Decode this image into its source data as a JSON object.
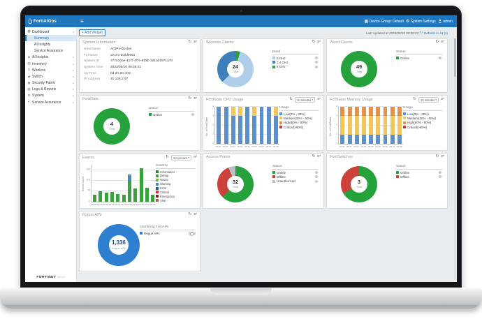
{
  "app": {
    "title": "FortiAIOps",
    "topbar": {
      "device_group": "Device Group: Default",
      "system_settings": "System Settings",
      "user": "admin"
    },
    "status": {
      "last_updated": "Last updated at 2023/05/10 09:38:23",
      "refresh_countdown": "Refresh in 41 (s)"
    },
    "add_widget": "+ Add Widget",
    "brand": "FORTINET",
    "version": "v2.0.0"
  },
  "sidebar": {
    "items": [
      {
        "label": "Dashboard",
        "icon": "dashboard-icon",
        "expanded": true,
        "children": [
          {
            "label": "Summary",
            "selected": true
          },
          {
            "label": "AI Insights"
          },
          {
            "label": "Service Assurance"
          }
        ]
      },
      {
        "label": "AI Insights",
        "icon": "ai-insights-icon",
        "arrow": true
      },
      {
        "label": "Inventory",
        "icon": "inventory-icon",
        "arrow": true
      },
      {
        "label": "Wireless",
        "icon": "wireless-icon",
        "arrow": true
      },
      {
        "label": "Switch",
        "icon": "switch-icon",
        "arrow": true
      },
      {
        "label": "Security Fabric",
        "icon": "security-fabric-icon",
        "arrow": true
      },
      {
        "label": "Logs & Reports",
        "icon": "logs-reports-icon",
        "arrow": true
      },
      {
        "label": "System",
        "icon": "system-icon",
        "arrow": true
      },
      {
        "label": "Service Assurance",
        "icon": "service-assurance-icon",
        "arrow": true
      }
    ]
  },
  "panels": {
    "system_information": {
      "title": "System Information",
      "fields": [
        {
          "label": "Host Name",
          "value": "AIOPs-Docker"
        },
        {
          "label": "Firmware",
          "value": "v2.0.0-build0061"
        },
        {
          "label": "System ID",
          "value": "777e10ae-427f-4f7e-955b-3d1a25971a7b"
        },
        {
          "label": "System Time",
          "value": "2023/05/10 09:38:41"
        },
        {
          "label": "Up Time",
          "value": "0d 2h 8m 04s"
        },
        {
          "label": "IP Address",
          "value": "10.106.2.97"
        }
      ]
    },
    "wireless_clients": {
      "title": "Wireless Clients",
      "center_value": "24",
      "center_label": "Total",
      "legend_title": "Band",
      "eyes": true,
      "legend": [
        {
          "label": "5 GHz",
          "color": "#aecde9"
        },
        {
          "label": "2.4 GHz",
          "color": "#3f7fb9"
        },
        {
          "label": "6 GHz",
          "color": "#2f9e44"
        }
      ],
      "chart_data": {
        "type": "donut",
        "slices": [
          {
            "label": "6 GHz",
            "value": 1,
            "color": "#2f9e44"
          },
          {
            "label": "5 GHz",
            "value": 14,
            "color": "#aecde9"
          },
          {
            "label": "2.4 GHz",
            "value": 9,
            "color": "#3f7fb9"
          }
        ]
      }
    },
    "wired_clients": {
      "title": "Wired Clients",
      "center_value": "49",
      "center_label": "Total",
      "legend_title": "Status",
      "eyes": true,
      "legend": [
        {
          "label": "Online",
          "color": "#26a23c"
        }
      ],
      "chart_data": {
        "type": "donut",
        "slices": [
          {
            "label": "Online",
            "value": 49,
            "color": "#26a23c"
          }
        ]
      }
    },
    "fortigate": {
      "title": "FortiGate",
      "center_value": "4",
      "center_label": "Total",
      "legend_title": "Status",
      "eyes": true,
      "legend": [
        {
          "label": "Online",
          "color": "#26a23c"
        }
      ],
      "chart_data": {
        "type": "donut",
        "slices": [
          {
            "label": "Online",
            "value": 4,
            "color": "#26a23c"
          }
        ]
      }
    },
    "fortigate_cpu_usage": {
      "title": "FortiGate CPU Usage",
      "range_label": "10 minutes",
      "legend_title": "Usage",
      "legend": [
        {
          "label": "Low(0% - 30%)",
          "color": "#5d8fc9"
        },
        {
          "label": "Medium(30% - 50%)",
          "color": "#f1c75d"
        },
        {
          "label": "High(50% - 80%)",
          "color": "#e2924d"
        },
        {
          "label": "Critical(>80%)",
          "color": "#c43d33"
        }
      ],
      "chart_data": {
        "type": "bar",
        "stacked": true,
        "categories": [
          "09:30",
          "09:31",
          "09:32",
          "09:33",
          "09:34",
          "09:35",
          "09:36",
          "09:37",
          "09:38"
        ],
        "series": [
          {
            "name": "Low(0% - 30%)",
            "color": "#5d8fc9",
            "values": [
              4,
              4,
              3,
              3,
              4,
              3,
              4,
              4,
              3
            ]
          },
          {
            "name": "Medium(30% - 50%)",
            "color": "#f1c75d",
            "values": [
              0,
              0,
              1,
              1,
              0,
              1,
              0,
              0,
              1
            ]
          }
        ],
        "ylabel": "No. of FortiGates",
        "ylim": [
          0,
          4
        ],
        "yticks": [
          0,
          1,
          2,
          3,
          4
        ]
      }
    },
    "fortigate_memory_usage": {
      "title": "FortiGate Memory Usage",
      "range_label": "10 minutes",
      "legend_title": "Usage",
      "legend": [
        {
          "label": "Low(0% - 30%)",
          "color": "#5d8fc9"
        },
        {
          "label": "Medium(30% - 50%)",
          "color": "#f1c75d"
        },
        {
          "label": "High(50% - 80%)",
          "color": "#e2924d"
        },
        {
          "label": "Critical(>80%)",
          "color": "#c43d33"
        }
      ],
      "chart_data": {
        "type": "bar",
        "stacked": true,
        "categories": [
          "09:30",
          "09:31",
          "09:32",
          "09:33",
          "09:34",
          "09:35",
          "09:36",
          "09:37",
          "09:38"
        ],
        "series": [
          {
            "name": "Low(0% - 30%)",
            "color": "#5d8fc9",
            "values": [
              1,
              1,
              1,
              1,
              1,
              1,
              1,
              1,
              1
            ]
          },
          {
            "name": "Medium(30% - 50%)",
            "color": "#f1c75d",
            "values": [
              2,
              2,
              2,
              2,
              2,
              2,
              2,
              2,
              2
            ]
          },
          {
            "name": "High(50% - 80%)",
            "color": "#e2924d",
            "values": [
              1,
              1,
              1,
              1,
              1,
              1,
              1,
              1,
              1
            ]
          }
        ],
        "ylabel": "No. of FortiGates",
        "ylim": [
          0,
          4
        ],
        "yticks": [
          0,
          1,
          2,
          3,
          4
        ]
      }
    },
    "events": {
      "title": "Events",
      "range_label": "10 minutes",
      "legend_title": "Severity",
      "legend": [
        {
          "label": "Information",
          "color": "#2e7d32"
        },
        {
          "label": "Debug",
          "color": "#43a047"
        },
        {
          "label": "Notice",
          "color": "#7cb342"
        },
        {
          "label": "Warning",
          "color": "#4f86c6"
        },
        {
          "label": "Error",
          "color": "#30588c"
        },
        {
          "label": "Critical",
          "color": "#d32f2f"
        },
        {
          "label": "Emergency",
          "color": "#8e1b1b"
        },
        {
          "label": "Alert",
          "color": "#a8584d"
        }
      ],
      "chart_data": {
        "type": "bar",
        "stacked": true,
        "categories": [
          "09:28",
          "09:29",
          "09:30",
          "09:31",
          "09:32",
          "09:33",
          "09:34",
          "09:35",
          "09:36",
          "09:37",
          "09:38"
        ],
        "series": [
          {
            "name": "Information",
            "color": "#3ba13c",
            "values": [
              33,
              48,
              42,
              46,
              36,
              33,
              100,
              62,
              160,
              65,
              32
            ]
          },
          {
            "name": "Warning",
            "color": "#4f86c6",
            "values": [
              0,
              0,
              0,
              0,
              0,
              0,
              30,
              0,
              0,
              0,
              0
            ]
          }
        ],
        "ylabel": "Events count",
        "ylim": [
          0,
          175
        ],
        "yticks": [
          0,
          50,
          100,
          150
        ]
      }
    },
    "access_points": {
      "title": "Access Points",
      "center_value": "32",
      "center_label": "Total",
      "legend_title": "Status",
      "eyes": true,
      "legend": [
        {
          "label": "Online",
          "color": "#26a23c"
        },
        {
          "label": "Offline",
          "color": "#cc423a"
        },
        {
          "label": "Unauthorized",
          "color": "#b9bfc4"
        }
      ],
      "chart_data": {
        "type": "donut",
        "slices": [
          {
            "label": "Online",
            "value": 20,
            "color": "#26a23c"
          },
          {
            "label": "Offline",
            "value": 10,
            "color": "#cc423a"
          },
          {
            "label": "Unauthorized",
            "value": 2,
            "color": "#b9bfc4"
          }
        ]
      }
    },
    "fortiswitches": {
      "title": "FortiSwitches",
      "center_value": "3",
      "center_label": "Total",
      "legend_title": "Status",
      "eyes": true,
      "legend": [
        {
          "label": "Online",
          "color": "#26a23c"
        },
        {
          "label": "Offline",
          "color": "#cc423a"
        }
      ],
      "chart_data": {
        "type": "donut",
        "slices": [
          {
            "label": "Online",
            "value": 2,
            "color": "#26a23c"
          },
          {
            "label": "Offline",
            "value": 1,
            "color": "#cc423a"
          }
        ]
      }
    },
    "rogue_aps": {
      "title": "Rogue APs",
      "center_value": "1,336",
      "center_label": "Rogue APs",
      "legend_title": "Interfering FortiAPs",
      "eyes": false,
      "legend": [
        {
          "label": "Rogue APs",
          "color": "#2e7fd0",
          "toggle": true
        }
      ],
      "chart_data": {
        "type": "donut",
        "slices": [
          {
            "label": "Rogue APs",
            "value": 1336,
            "color": "#2e7fd0"
          }
        ]
      }
    }
  }
}
